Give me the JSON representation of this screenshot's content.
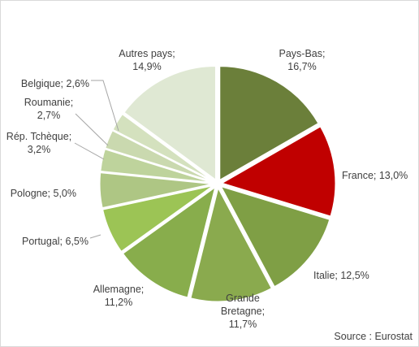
{
  "chart_data": {
    "type": "pie",
    "categories": [
      "Pays-Bas",
      "France",
      "Italie",
      "Grande Bretagne",
      "Allemagne",
      "Portugal",
      "Pologne",
      "Rép. Tchèque",
      "Roumanie",
      "Belgique",
      "Autres pays"
    ],
    "values": [
      16.7,
      13.0,
      12.5,
      11.7,
      11.2,
      6.5,
      5.0,
      3.2,
      2.7,
      2.6,
      14.9
    ],
    "labels": [
      [
        "Pays-Bas;",
        "16,7%"
      ],
      [
        "France; 13,0%"
      ],
      [
        "Italie; 12,5%"
      ],
      [
        "Grande",
        "Bretagne;",
        "11,7%"
      ],
      [
        "Allemagne;",
        "11,2%"
      ],
      [
        "Portugal; 6,5%"
      ],
      [
        "Pologne; 5,0%"
      ],
      [
        "Rép. Tchèque;",
        "3,2%"
      ],
      [
        "Roumanie;",
        "2,7%"
      ],
      [
        "Belgique; 2,6%"
      ],
      [
        "Autres pays;",
        "14,9%"
      ]
    ],
    "colors": [
      "#6b7f3a",
      "#c00000",
      "#7f9f45",
      "#8aaa4e",
      "#88ad4c",
      "#9cc455",
      "#aec684",
      "#bed39c",
      "#cad9af",
      "#d4e1be",
      "#dfe8d3"
    ],
    "start_angle_deg": 0,
    "direction": "clockwise",
    "exploded": true,
    "source": "Source : Eurostat"
  }
}
